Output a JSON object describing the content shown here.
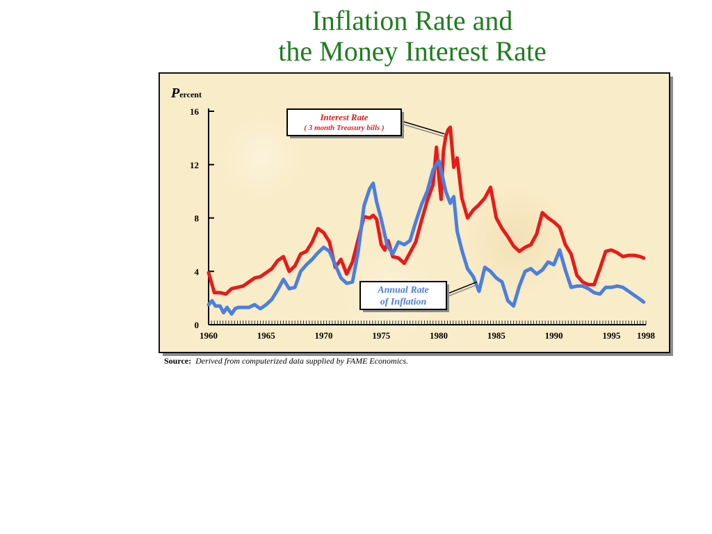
{
  "title": {
    "line1": "Inflation Rate and",
    "line2": "the Money Interest Rate"
  },
  "source": {
    "label": "Source:",
    "text": "Derived from computerized data supplied by FAME Economics."
  },
  "colors": {
    "title": "#1e7d1e",
    "interest": "#e81a1a",
    "inflation": "#4b7fe0",
    "background": "#f9ecc8"
  },
  "chart_data": {
    "type": "line",
    "ylabel_big": "P",
    "ylabel_rest": "ercent",
    "xlabel": "",
    "xlim": [
      1960,
      1998
    ],
    "ylim": [
      0,
      16
    ],
    "yticks": [
      0,
      4,
      8,
      12,
      16
    ],
    "xticks": [
      1960,
      1965,
      1970,
      1975,
      1980,
      1985,
      1990,
      1995,
      1998
    ],
    "grid": false,
    "series": [
      {
        "key": "interest",
        "color": "#e81a1a",
        "x": [
          1960,
          1960.5,
          1961,
          1961.5,
          1962,
          1962.5,
          1963,
          1963.5,
          1964,
          1964.5,
          1965,
          1965.5,
          1966,
          1966.5,
          1967,
          1967.5,
          1968,
          1968.5,
          1969,
          1969.5,
          1970,
          1970.5,
          1971,
          1971.5,
          1972,
          1972.5,
          1973,
          1973.5,
          1974,
          1974.3,
          1974.6,
          1975,
          1975.3,
          1975.6,
          1976,
          1976.5,
          1977,
          1977.5,
          1978,
          1978.5,
          1979,
          1979.5,
          1979.8,
          1980,
          1980.2,
          1980.4,
          1980.6,
          1980.8,
          1981,
          1981.3,
          1981.6,
          1982,
          1982.5,
          1983,
          1983.5,
          1984,
          1984.5,
          1985,
          1985.5,
          1986,
          1986.5,
          1987,
          1987.5,
          1988,
          1988.5,
          1989,
          1989.5,
          1990,
          1990.5,
          1991,
          1991.5,
          1992,
          1992.5,
          1993,
          1993.5,
          1994,
          1994.5,
          1995,
          1995.5,
          1996,
          1996.5,
          1997,
          1997.5,
          1997.8
        ],
        "y": [
          3.9,
          2.4,
          2.4,
          2.3,
          2.7,
          2.8,
          2.9,
          3.2,
          3.5,
          3.6,
          3.9,
          4.2,
          4.8,
          5.1,
          4.0,
          4.4,
          5.3,
          5.5,
          6.2,
          7.2,
          6.9,
          6.2,
          4.3,
          4.9,
          3.8,
          4.7,
          6.4,
          8.1,
          8.0,
          8.2,
          7.9,
          6.0,
          5.6,
          6.3,
          5.1,
          5.0,
          4.6,
          5.4,
          6.2,
          7.8,
          9.3,
          10.5,
          13.3,
          11.1,
          9.4,
          13.0,
          14.1,
          14.6,
          14.8,
          11.8,
          12.5,
          9.5,
          8.0,
          8.6,
          9.0,
          9.5,
          10.3,
          8.0,
          7.2,
          6.6,
          5.9,
          5.5,
          5.8,
          6.0,
          6.8,
          8.4,
          8.0,
          7.7,
          7.3,
          6.0,
          5.3,
          3.7,
          3.2,
          3.0,
          3.0,
          4.2,
          5.5,
          5.6,
          5.4,
          5.1,
          5.2,
          5.2,
          5.1,
          5.0
        ]
      },
      {
        "key": "inflation",
        "color": "#4b7fe0",
        "x": [
          1960,
          1960.3,
          1960.6,
          1961,
          1961.3,
          1961.6,
          1962,
          1962.3,
          1962.6,
          1963,
          1963.5,
          1964,
          1964.5,
          1965,
          1965.5,
          1966,
          1966.5,
          1967,
          1967.5,
          1968,
          1968.5,
          1969,
          1969.5,
          1970,
          1970.5,
          1971,
          1971.5,
          1972,
          1972.5,
          1973,
          1973.5,
          1974,
          1974.3,
          1974.6,
          1975,
          1975.5,
          1976,
          1976.5,
          1977,
          1977.5,
          1978,
          1978.5,
          1979,
          1979.5,
          1980,
          1980.3,
          1980.6,
          1981,
          1981.3,
          1981.6,
          1982,
          1982.5,
          1983,
          1983.5,
          1984,
          1984.5,
          1985,
          1985.5,
          1986,
          1986.5,
          1987,
          1987.5,
          1988,
          1988.5,
          1989,
          1989.5,
          1990,
          1990.5,
          1991,
          1991.5,
          1992,
          1992.5,
          1993,
          1993.5,
          1994,
          1994.5,
          1995,
          1995.5,
          1996,
          1996.5,
          1997,
          1997.5,
          1997.8
        ],
        "y": [
          1.5,
          1.8,
          1.4,
          1.4,
          0.9,
          1.3,
          0.8,
          1.2,
          1.3,
          1.3,
          1.3,
          1.5,
          1.2,
          1.5,
          1.9,
          2.6,
          3.4,
          2.7,
          2.8,
          4.0,
          4.5,
          4.9,
          5.4,
          5.8,
          5.5,
          4.5,
          3.5,
          3.1,
          3.2,
          5.5,
          8.9,
          10.2,
          10.6,
          9.2,
          7.9,
          6.0,
          5.3,
          6.2,
          6.0,
          6.3,
          7.7,
          9.0,
          10.0,
          11.6,
          12.3,
          11.2,
          10.0,
          9.1,
          9.6,
          7.0,
          5.6,
          4.2,
          3.6,
          2.5,
          4.3,
          4.0,
          3.5,
          3.2,
          1.8,
          1.4,
          2.9,
          4.0,
          4.2,
          3.8,
          4.1,
          4.7,
          4.5,
          5.6,
          4.1,
          2.8,
          2.9,
          2.9,
          2.7,
          2.4,
          2.3,
          2.8,
          2.8,
          2.9,
          2.8,
          2.5,
          2.2,
          1.9,
          1.7
        ]
      }
    ],
    "annotations": [
      {
        "series": "interest",
        "line1": "Interest Rate",
        "line2": "( 3 month Treasury bills )"
      },
      {
        "series": "inflation",
        "line1": "Annual Rate",
        "line2": "of Inflation"
      }
    ]
  }
}
